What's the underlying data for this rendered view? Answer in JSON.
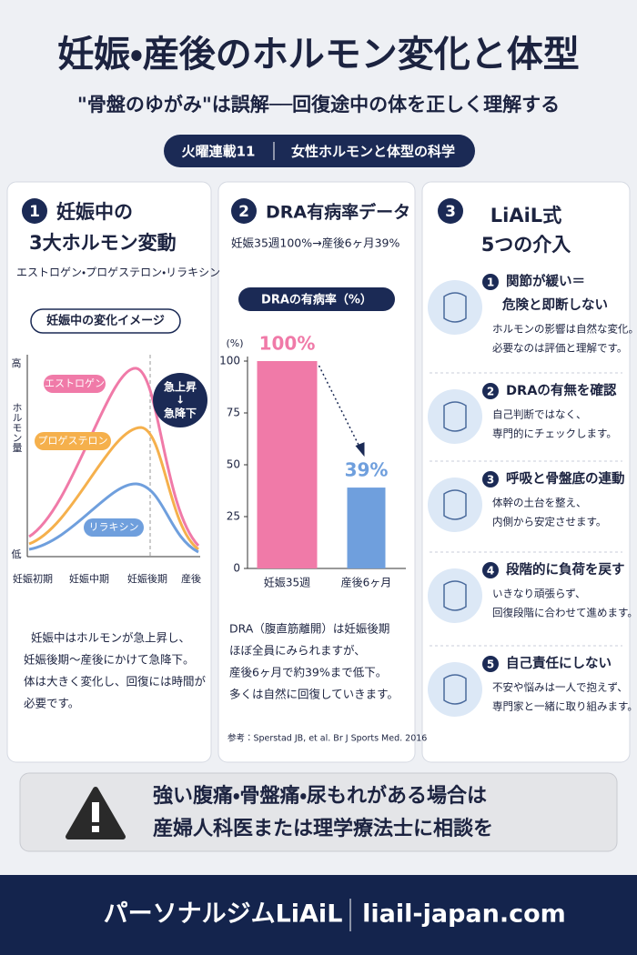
{
  "header": {
    "title": "妊娠・産後のホルモン変化と体型",
    "subtitle": "\"骨盤のゆがみ\"は誤解──回復途中の体を正しく理解する",
    "badge": [
      "火曜連載11",
      "女性ホルモンと体型の科学"
    ]
  },
  "panels": [
    {
      "number": "1",
      "title": [
        "妊娠中の",
        "3大ホルモン変動"
      ],
      "subtitle": "エストロゲン・プロゲステロン・リラキシン",
      "chart_label": "妊娠中の変化イメージ",
      "y_labels": [
        "高",
        "ホルモン量",
        "低"
      ],
      "x_labels": [
        "妊娠初期",
        "妊娠中期",
        "妊娠後期",
        "産後"
      ],
      "curves": [
        "エストロゲン",
        "プロゲステロン",
        "リラキシン"
      ],
      "callout": [
        "急上昇",
        "↓",
        "急降下"
      ],
      "body": [
        "妊娠中はホルモンが急上昇し、",
        "妊娠後期〜産後にかけて急降下。",
        "体は大きく変化し、回復には時間が",
        "必要です。"
      ]
    },
    {
      "number": "2",
      "title": [
        "DRA有病率データ"
      ],
      "subtitle": "妊娠35週100%→産後6ヶ月39%",
      "chart_data": {
        "type": "bar",
        "title": "DRAの有病率（%）",
        "y_unit": "(%)",
        "categories": [
          "妊娠35週",
          "産後6ヶ月"
        ],
        "values": [
          100,
          39
        ],
        "value_labels": [
          "100%",
          "39%"
        ],
        "colors": [
          "#f07aa8",
          "#6f9fdd"
        ],
        "ylim": [
          0,
          100
        ],
        "yticks": [
          0,
          25,
          50,
          75,
          100
        ]
      },
      "body": [
        "DRA（腹直筋離開）は妊娠後期",
        "ほぼ全員にみられますが、",
        "産後6ヶ月で約39%まで低下。",
        "多くは自然に回復していきます。"
      ],
      "reference": "参考：Sperstad JB, et al. Br J Sports Med. 2016"
    },
    {
      "number": "3",
      "title": [
        "LiAiL式",
        "5つの介入"
      ],
      "items": [
        {
          "number": "1",
          "title": [
            "関節が緩い＝",
            "危険と即断しない"
          ],
          "body": [
            "ホルモンの影響は自然な変化。",
            "必要なのは評価と理解です。"
          ]
        },
        {
          "number": "2",
          "title": [
            "DRAの有無を確認"
          ],
          "body": [
            "自己判断ではなく、",
            "専門的にチェックします。"
          ]
        },
        {
          "number": "3",
          "title": [
            "呼吸と骨盤底の連動"
          ],
          "body": [
            "体幹の土台を整え、",
            "内側から安定させます。"
          ]
        },
        {
          "number": "4",
          "title": [
            "段階的に負荷を戻す"
          ],
          "body": [
            "いきなり頑張らず、",
            "回復段階に合わせて進めます。"
          ]
        },
        {
          "number": "5",
          "title": [
            "自己責任にしない"
          ],
          "body": [
            "不安や悩みは一人で抱えず、",
            "専門家と一緒に取り組みます。"
          ]
        }
      ]
    }
  ],
  "warning": [
    "強い腹痛・骨盤痛・尿もれがある場合は",
    "産婦人科医または理学療法士に相談を"
  ],
  "footer": {
    "brand": "パーソナルジムLiAiL",
    "url": "liail-japan.com"
  }
}
